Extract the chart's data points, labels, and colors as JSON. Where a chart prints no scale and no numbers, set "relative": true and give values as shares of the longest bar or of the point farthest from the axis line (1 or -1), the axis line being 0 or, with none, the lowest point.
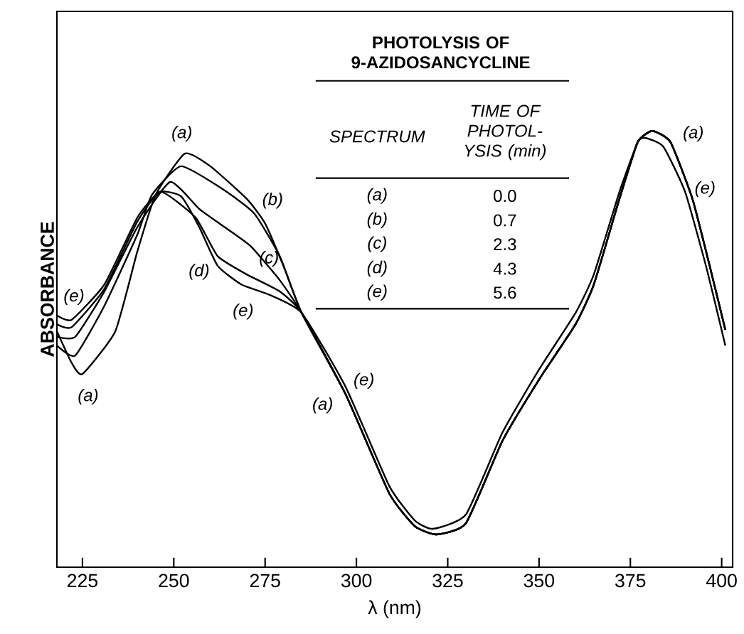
{
  "chart_data": {
    "type": "line",
    "relative": true,
    "title": "PHOTOLYSIS OF 9-AZIDOSANCYCLINE",
    "xlabel": "λ (nm)",
    "ylabel": "ABSORBANCE",
    "xlim": [
      218,
      403
    ],
    "xticks": [
      225,
      250,
      275,
      300,
      325,
      350,
      375,
      400
    ],
    "series": [
      {
        "name": "(a)",
        "color": "#000000",
        "x": [
          218,
          222,
          225,
          234,
          240,
          245,
          253,
          260,
          270,
          275,
          280,
          285,
          297,
          309,
          316,
          322,
          330,
          340,
          350,
          360,
          365,
          372,
          377,
          381,
          386,
          392,
          397,
          401
        ],
        "values": [
          0.541,
          0.469,
          0.443,
          0.541,
          0.723,
          0.853,
          0.948,
          0.919,
          0.844,
          0.788,
          0.691,
          0.583,
          0.397,
          0.169,
          0.094,
          0.075,
          0.101,
          0.29,
          0.43,
          0.557,
          0.648,
          0.844,
          0.974,
          1.0,
          0.974,
          0.844,
          0.681,
          0.544
        ]
      },
      {
        "name": "(b)",
        "color": "#000000",
        "x": [
          218,
          223,
          231,
          240,
          244,
          252,
          263.5,
          272,
          279,
          285,
          297,
          309,
          316,
          322,
          330,
          340,
          350,
          360,
          365,
          372,
          377,
          381,
          386,
          392,
          397,
          401
        ],
        "values": [
          0.508,
          0.485,
          0.599,
          0.762,
          0.853,
          0.919,
          0.866,
          0.811,
          0.713,
          0.583,
          0.397,
          0.169,
          0.094,
          0.075,
          0.101,
          0.29,
          0.43,
          0.557,
          0.648,
          0.844,
          0.974,
          1.0,
          0.974,
          0.844,
          0.681,
          0.544
        ]
      },
      {
        "name": "(c)",
        "color": "#000000",
        "x": [
          218,
          223,
          231,
          240,
          249,
          257,
          264,
          271,
          279,
          285,
          297,
          309,
          316,
          322,
          330,
          340,
          350,
          360,
          365,
          372,
          377,
          381,
          386,
          392,
          397,
          401
        ],
        "values": [
          0.528,
          0.528,
          0.632,
          0.779,
          0.883,
          0.821,
          0.779,
          0.736,
          0.658,
          0.583,
          0.397,
          0.169,
          0.094,
          0.075,
          0.101,
          0.29,
          0.43,
          0.557,
          0.648,
          0.844,
          0.974,
          1.0,
          0.974,
          0.844,
          0.681,
          0.544
        ]
      },
      {
        "name": "(d)",
        "color": "#000000",
        "x": [
          218,
          222,
          231,
          240,
          246.5,
          256,
          262,
          270,
          279,
          285,
          297,
          309,
          316,
          322,
          330,
          340,
          350,
          360,
          365,
          372,
          377,
          381,
          386,
          392,
          397,
          401
        ],
        "values": [
          0.557,
          0.55,
          0.638,
          0.792,
          0.86,
          0.801,
          0.713,
          0.671,
          0.632,
          0.583,
          0.397,
          0.169,
          0.094,
          0.075,
          0.101,
          0.29,
          0.43,
          0.557,
          0.648,
          0.844,
          0.974,
          1.0,
          0.974,
          0.844,
          0.681,
          0.544
        ]
      },
      {
        "name": "(e)",
        "color": "#000000",
        "x": [
          218,
          222,
          231,
          240,
          246,
          252,
          257,
          262,
          268.5,
          276,
          285,
          297,
          309,
          316,
          321,
          330,
          340,
          350,
          360,
          365,
          372,
          377,
          379,
          384,
          390,
          396,
          401
        ],
        "values": [
          0.577,
          0.567,
          0.648,
          0.801,
          0.86,
          0.85,
          0.779,
          0.691,
          0.648,
          0.625,
          0.583,
          0.414,
          0.186,
          0.107,
          0.088,
          0.121,
          0.309,
          0.453,
          0.583,
          0.671,
          0.86,
          0.974,
          0.984,
          0.964,
          0.86,
          0.681,
          0.508
        ]
      }
    ],
    "annotations": [
      "SPECTRUM",
      "TIME OF PHOTOL-YSIS (min)",
      "(a)",
      "0.0",
      "(b)",
      "0.7",
      "(c)",
      "2.3",
      "(d)",
      "4.3",
      "(e)",
      "5.6"
    ]
  }
}
